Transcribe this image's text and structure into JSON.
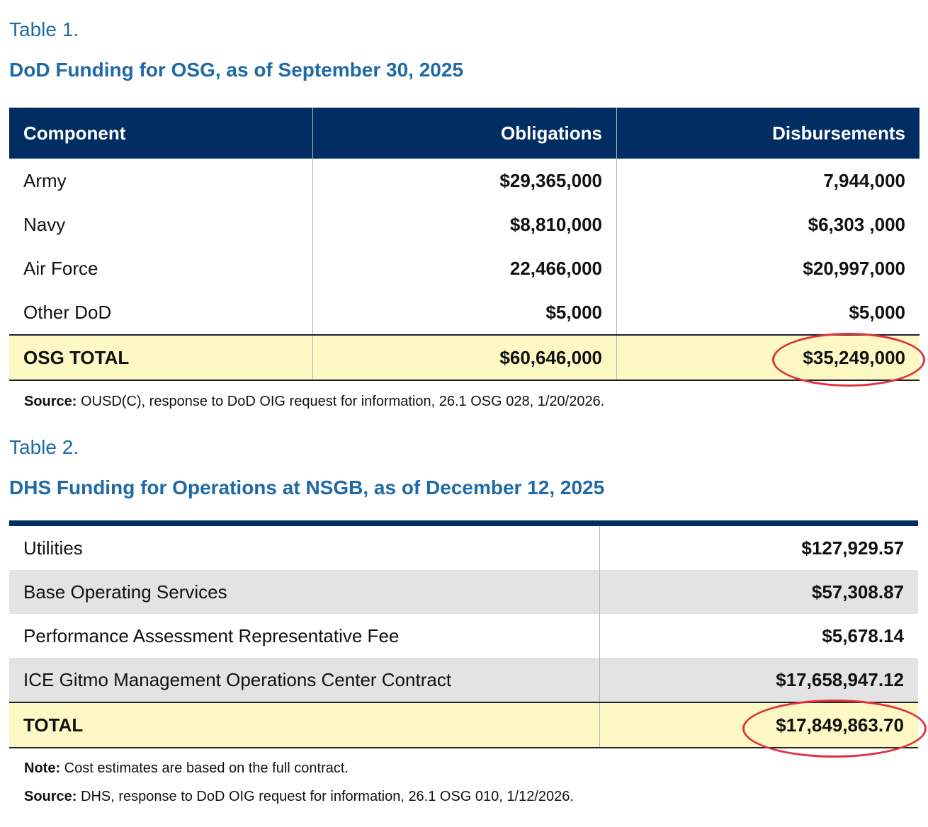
{
  "table1": {
    "label": "Table 1.",
    "title": "DoD Funding for OSG, as of September 30, 2025",
    "headers": [
      "Component",
      "Obligations",
      "Disbursements"
    ],
    "rows": [
      [
        "Army",
        "$29,365,000",
        "7,944,000"
      ],
      [
        "Navy",
        "$8,810,000",
        "$6,303 ,000"
      ],
      [
        "Air Force",
        "22,466,000",
        "$20,997,000"
      ],
      [
        "Other DoD",
        "$5,000",
        "$5,000"
      ]
    ],
    "total": [
      "OSG TOTAL",
      "$60,646,000",
      "$35,249,000"
    ],
    "source_label": "Source:",
    "source": " OUSD(C), response to DoD OIG request for information, 26.1 OSG 028, 1/20/2026."
  },
  "table2": {
    "label": "Table 2.",
    "title": "DHS Funding for Operations at NSGB, as of December 12, 2025",
    "rows": [
      [
        "Utilities",
        "$127,929.57"
      ],
      [
        "Base Operating Services",
        "$57,308.87"
      ],
      [
        "Performance Assessment Representative Fee",
        "$5,678.14"
      ],
      [
        "ICE Gitmo Management Operations Center Contract",
        "$17,658,947.12"
      ]
    ],
    "total": [
      "TOTAL",
      "$17,849,863.70"
    ],
    "note_label": "Note:",
    "note": " Cost estimates are based on the full contract.",
    "source_label": "Source:",
    "source": " DHS, response to DoD OIG request for information, 26.1 OSG 010, 1/12/2026."
  },
  "colors": {
    "title": "#1f6aa5",
    "header": "#002d62",
    "total_bg": "#fdf8c4",
    "stripe": "#e3e3e3",
    "highlight_circle": "#e0313f"
  }
}
